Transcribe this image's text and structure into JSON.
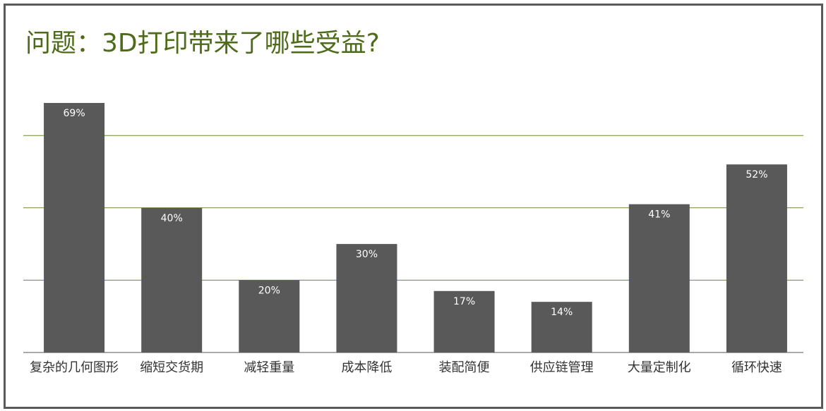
{
  "title": "问题：3D打印带来了哪些受益?",
  "chart_data": {
    "type": "bar",
    "title": "问题：3D打印带来了哪些受益?",
    "categories": [
      "复杂的几何图形",
      "缩短交货期",
      "减轻重量",
      "成本降低",
      "装配简便",
      "供应链管理",
      "大量定制化",
      "循环快速"
    ],
    "values": [
      69,
      40,
      20,
      30,
      17,
      14,
      41,
      52
    ],
    "value_labels": [
      "69%",
      "40%",
      "20%",
      "30%",
      "17%",
      "14%",
      "41%",
      "52%"
    ],
    "xlabel": "",
    "ylabel": "",
    "ylim": [
      0,
      60
    ],
    "grid": true,
    "legend": "none",
    "bar_color": "#595959",
    "grid_color": "#6b8a2a",
    "title_color": "#4e6b1a"
  }
}
